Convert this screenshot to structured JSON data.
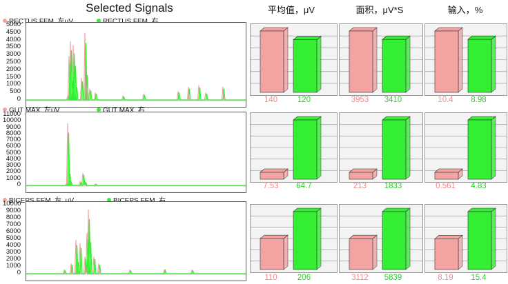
{
  "title": "Selected Signals",
  "columns": [
    "平均值，μV",
    "面积，μV*S",
    "输入，%"
  ],
  "colors": {
    "left": "#f4a3a3",
    "right": "#33ee33",
    "left_text": "#f08a8a",
    "right_text": "#33cc33"
  },
  "signals": [
    {
      "left_label": "RECTUS FEM, 左μV",
      "right_label": "RECTUS FEM, 右",
      "y_ticks": [
        "5000",
        "4500",
        "4000",
        "3500",
        "3000",
        "2500",
        "2000",
        "1500",
        "1000",
        "500",
        "0"
      ],
      "ymax": 5000,
      "chart_data": [
        {
          "metric": "平均值，μV",
          "left": 140,
          "right": 120,
          "left_label": "140",
          "right_label": "120"
        },
        {
          "metric": "面积，μV*S",
          "left": 3953,
          "right": 3410,
          "left_label": "3953",
          "right_label": "3410"
        },
        {
          "metric": "输入，%",
          "left": 10.4,
          "right": 8.98,
          "left_label": "10.4",
          "right_label": "8.98"
        }
      ]
    },
    {
      "left_label": "GUT MAX, 左μV",
      "right_label": "GUT MAX, 右",
      "y_ticks": [
        "11000",
        "10000",
        "9000",
        "8000",
        "7000",
        "6000",
        "5000",
        "4000",
        "3000",
        "2000",
        "1000",
        "0"
      ],
      "ymax": 11000,
      "chart_data": [
        {
          "metric": "平均值，μV",
          "left": 7.53,
          "right": 64.7,
          "left_label": "7.53",
          "right_label": "64.7"
        },
        {
          "metric": "面积，μV*S",
          "left": 213,
          "right": 1833,
          "left_label": "213",
          "right_label": "1833"
        },
        {
          "metric": "输入，%",
          "left": 0.561,
          "right": 4.83,
          "left_label": "0.561",
          "right_label": "4.83"
        }
      ]
    },
    {
      "left_label": "BICEPS FEM, 左, μV",
      "right_label": "BICEPS FEM, 右",
      "y_ticks": [
        "10000",
        "9000",
        "8000",
        "7000",
        "6000",
        "5000",
        "4000",
        "3000",
        "2000",
        "1000",
        "0"
      ],
      "ymax": 10000,
      "chart_data": [
        {
          "metric": "平均值，μV",
          "left": 110,
          "right": 206,
          "left_label": "110",
          "right_label": "206"
        },
        {
          "metric": "面积，μV*S",
          "left": 3112,
          "right": 5839,
          "left_label": "3112",
          "right_label": "5839"
        },
        {
          "metric": "输入，%",
          "left": 8.19,
          "right": 15.4,
          "left_label": "8.19",
          "right_label": "15.4"
        }
      ]
    }
  ]
}
